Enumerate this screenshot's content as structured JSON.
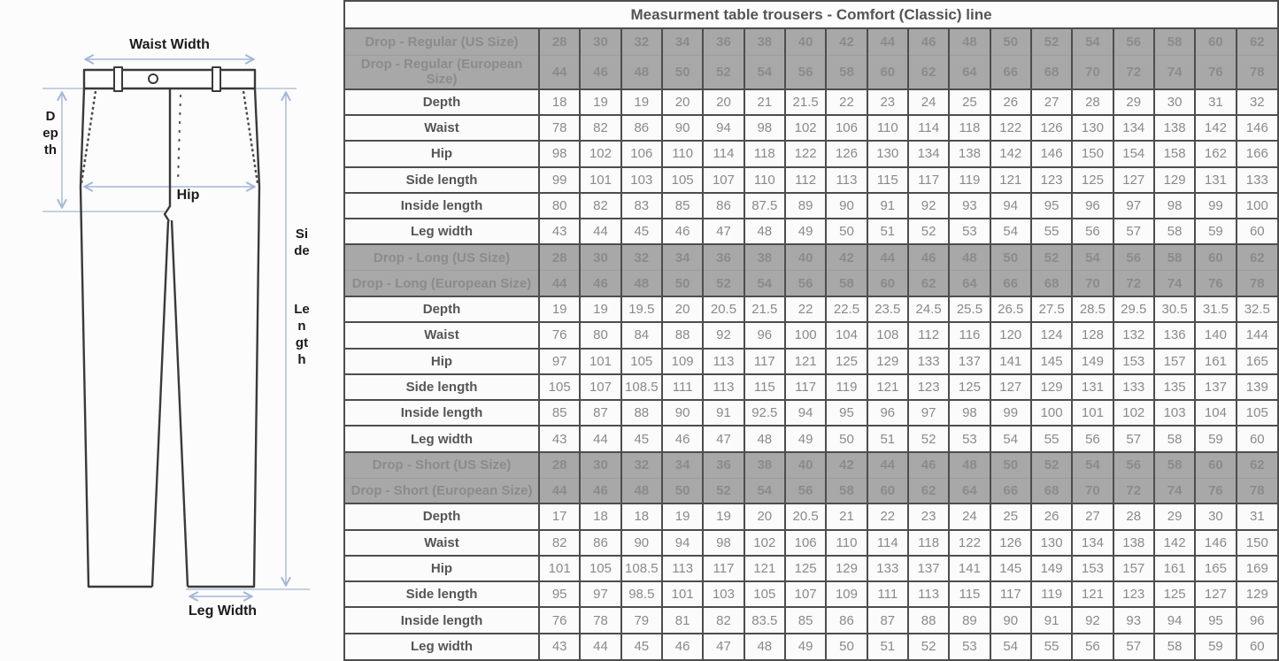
{
  "title": "Measurment table trousers - Comfort (Classic) line",
  "diagram": {
    "labels": {
      "waist_width": "Waist Width",
      "depth": "Depth",
      "hip": "Hip",
      "side_word": "Side",
      "length_word": "Length",
      "leg_width": "Leg Width"
    },
    "arrow_color": "#a3b7d6",
    "outline_color": "#3a3a3a"
  },
  "colors": {
    "header_bg": "#a8a8a8",
    "header_text": "#8b8b8b",
    "border": "#4d4d4d",
    "label_text": "#555555",
    "value_text": "#8a8a8a",
    "row_bg": "#fbfbfb"
  },
  "table": {
    "sections": [
      {
        "us_label": "Drop - Regular (US Size)",
        "eu_label": "Drop - Regular (European Size)",
        "us_sizes": [
          28,
          30,
          32,
          34,
          36,
          38,
          40,
          42,
          44,
          46,
          48,
          50,
          52,
          54,
          56,
          58,
          60,
          62
        ],
        "eu_sizes": [
          44,
          46,
          48,
          50,
          52,
          54,
          56,
          58,
          60,
          62,
          64,
          66,
          68,
          70,
          72,
          74,
          76,
          78
        ],
        "rows": [
          {
            "label": "Depth",
            "values": [
              18,
              19,
              19,
              20,
              20,
              21,
              21.5,
              22,
              23,
              24,
              25,
              26,
              27,
              28,
              29,
              30,
              31,
              32
            ]
          },
          {
            "label": "Waist",
            "values": [
              78,
              82,
              86,
              90,
              94,
              98,
              102,
              106,
              110,
              114,
              118,
              122,
              126,
              130,
              134,
              138,
              142,
              146
            ]
          },
          {
            "label": "Hip",
            "values": [
              98,
              102,
              106,
              110,
              114,
              118,
              122,
              126,
              130,
              134,
              138,
              142,
              146,
              150,
              154,
              158,
              162,
              166
            ]
          },
          {
            "label": "Side length",
            "values": [
              99,
              101,
              103,
              105,
              107,
              110,
              112,
              113,
              115,
              117,
              119,
              121,
              123,
              125,
              127,
              129,
              131,
              133
            ]
          },
          {
            "label": "Inside length",
            "values": [
              80,
              82,
              83,
              85,
              86,
              87.5,
              89,
              90,
              91,
              92,
              93,
              94,
              95,
              96,
              97,
              98,
              99,
              100
            ]
          },
          {
            "label": "Leg width",
            "values": [
              43,
              44,
              45,
              46,
              47,
              48,
              49,
              50,
              51,
              52,
              53,
              54,
              55,
              56,
              57,
              58,
              59,
              60
            ]
          }
        ]
      },
      {
        "us_label": "Drop - Long (US Size)",
        "eu_label": "Drop - Long (European Size)",
        "us_sizes": [
          28,
          30,
          32,
          34,
          36,
          38,
          40,
          42,
          44,
          46,
          48,
          50,
          52,
          54,
          56,
          58,
          60,
          62
        ],
        "eu_sizes": [
          44,
          46,
          48,
          50,
          52,
          54,
          56,
          58,
          60,
          62,
          64,
          66,
          68,
          70,
          72,
          74,
          76,
          78
        ],
        "rows": [
          {
            "label": "Depth",
            "values": [
              19,
              19,
              19.5,
              20,
              20.5,
              21.5,
              22,
              22.5,
              23.5,
              24.5,
              25.5,
              26.5,
              27.5,
              28.5,
              29.5,
              30.5,
              31.5,
              32.5
            ]
          },
          {
            "label": "Waist",
            "values": [
              76,
              80,
              84,
              88,
              92,
              96,
              100,
              104,
              108,
              112,
              116,
              120,
              124,
              128,
              132,
              136,
              140,
              144
            ]
          },
          {
            "label": "Hip",
            "values": [
              97,
              101,
              105,
              109,
              113,
              117,
              121,
              125,
              129,
              133,
              137,
              141,
              145,
              149,
              153,
              157,
              161,
              165
            ]
          },
          {
            "label": "Side length",
            "values": [
              105,
              107,
              108.5,
              111,
              113,
              115,
              117,
              119,
              121,
              123,
              125,
              127,
              129,
              131,
              133,
              135,
              137,
              139
            ]
          },
          {
            "label": "Inside length",
            "values": [
              85,
              87,
              88,
              90,
              91,
              92.5,
              94,
              95,
              96,
              97,
              98,
              99,
              100,
              101,
              102,
              103,
              104,
              105
            ]
          },
          {
            "label": "Leg width",
            "values": [
              43,
              44,
              45,
              46,
              47,
              48,
              49,
              50,
              51,
              52,
              53,
              54,
              55,
              56,
              57,
              58,
              59,
              60
            ]
          }
        ]
      },
      {
        "us_label": "Drop - Short (US Size)",
        "eu_label": "Drop - Short (European Size)",
        "us_sizes": [
          28,
          30,
          32,
          34,
          36,
          38,
          40,
          42,
          44,
          46,
          48,
          50,
          52,
          54,
          56,
          58,
          60,
          62
        ],
        "eu_sizes": [
          44,
          46,
          48,
          50,
          52,
          54,
          56,
          58,
          60,
          62,
          64,
          66,
          68,
          70,
          72,
          74,
          76,
          78
        ],
        "rows": [
          {
            "label": "Depth",
            "values": [
              17,
              18,
              18,
              19,
              19,
              20,
              20.5,
              21,
              22,
              23,
              24,
              25,
              26,
              27,
              28,
              29,
              30,
              31
            ]
          },
          {
            "label": "Waist",
            "values": [
              82,
              86,
              90,
              94,
              98,
              102,
              106,
              110,
              114,
              118,
              122,
              126,
              130,
              134,
              138,
              142,
              146,
              150
            ]
          },
          {
            "label": "Hip",
            "values": [
              101,
              105,
              108.5,
              113,
              117,
              121,
              125,
              129,
              133,
              137,
              141,
              145,
              149,
              153,
              157,
              161,
              165,
              169
            ]
          },
          {
            "label": "Side length",
            "values": [
              95,
              97,
              98.5,
              101,
              103,
              105,
              107,
              109,
              111,
              113,
              115,
              117,
              119,
              121,
              123,
              125,
              127,
              129
            ]
          },
          {
            "label": "Inside length",
            "values": [
              76,
              78,
              79,
              81,
              82,
              83.5,
              85,
              86,
              87,
              88,
              89,
              90,
              91,
              92,
              93,
              94,
              95,
              96
            ]
          },
          {
            "label": "Leg width",
            "values": [
              43,
              44,
              45,
              46,
              47,
              48,
              49,
              50,
              51,
              52,
              53,
              54,
              55,
              56,
              57,
              58,
              59,
              60
            ]
          }
        ]
      }
    ]
  }
}
